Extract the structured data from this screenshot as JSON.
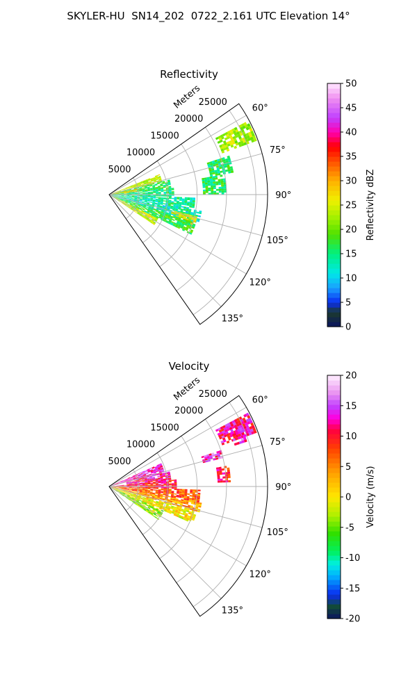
{
  "figure": {
    "title": "SKYLER-HU  SN14_202  0722_2.161 UTC Elevation 14°"
  },
  "chart_data": [
    {
      "type": "heatmap",
      "projection": "polar-sector",
      "title": "Reflectivity",
      "radial_label": "Meters",
      "r_ticks": [
        5000,
        10000,
        15000,
        20000,
        25000
      ],
      "r_range": [
        0,
        27000
      ],
      "theta_ticks": [
        "60°",
        "75°",
        "90°",
        "105°",
        "120°",
        "135°"
      ],
      "theta_tick_values": [
        60,
        75,
        90,
        105,
        120,
        135
      ],
      "theta_range": [
        55,
        145
      ],
      "grid": true,
      "colorbar": {
        "label": "Reflectivity dBZ",
        "min": 0,
        "max": 50,
        "ticks": [
          0,
          5,
          10,
          15,
          20,
          25,
          30,
          35,
          40,
          45,
          50
        ],
        "stops": [
          {
            "v": 0,
            "color": "#0a1560"
          },
          {
            "v": 3,
            "color": "#1c3a2c"
          },
          {
            "v": 5,
            "color": "#0a2cf0"
          },
          {
            "v": 8,
            "color": "#1aa0ff"
          },
          {
            "v": 11,
            "color": "#00e8e8"
          },
          {
            "v": 15,
            "color": "#00f080"
          },
          {
            "v": 19,
            "color": "#50e000"
          },
          {
            "v": 22,
            "color": "#98f000"
          },
          {
            "v": 26,
            "color": "#f0f000"
          },
          {
            "v": 30,
            "color": "#ffb000"
          },
          {
            "v": 34,
            "color": "#ff5000"
          },
          {
            "v": 37,
            "color": "#ff0000"
          },
          {
            "v": 40,
            "color": "#ff00b0"
          },
          {
            "v": 43,
            "color": "#c040ff"
          },
          {
            "v": 47,
            "color": "#f090f0"
          },
          {
            "v": 50,
            "color": "#ffe8ff"
          }
        ]
      },
      "echo_regions": [
        {
          "az": [
            68,
            76
          ],
          "r": [
            300,
            9000
          ],
          "value": 24
        },
        {
          "az": [
            76,
            84
          ],
          "r": [
            300,
            10500
          ],
          "value": 17
        },
        {
          "az": [
            78,
            86
          ],
          "r": [
            300,
            4500
          ],
          "value": 28
        },
        {
          "az": [
            84,
            92
          ],
          "r": [
            300,
            11000
          ],
          "value": 15
        },
        {
          "az": [
            92,
            100
          ],
          "r": [
            300,
            14500
          ],
          "value": 14
        },
        {
          "az": [
            100,
            108
          ],
          "r": [
            300,
            16000
          ],
          "value": 13
        },
        {
          "az": [
            104,
            110
          ],
          "r": [
            11000,
            15500
          ],
          "value": 25
        },
        {
          "az": [
            108,
            116
          ],
          "r": [
            300,
            15500
          ],
          "value": 17
        },
        {
          "az": [
            116,
            124
          ],
          "r": [
            300,
            9000
          ],
          "value": 24
        },
        {
          "az": [
            62,
            70
          ],
          "r": [
            20500,
            26500
          ],
          "value": 23
        },
        {
          "az": [
            72,
            80
          ],
          "r": [
            17500,
            21500
          ],
          "value": 16
        },
        {
          "az": [
            80,
            90
          ],
          "r": [
            16000,
            20000
          ],
          "value": 16
        }
      ]
    },
    {
      "type": "heatmap",
      "projection": "polar-sector",
      "title": "Velocity",
      "radial_label": "Meters",
      "r_ticks": [
        5000,
        10000,
        15000,
        20000,
        25000
      ],
      "r_range": [
        0,
        27000
      ],
      "theta_ticks": [
        "60°",
        "75°",
        "90°",
        "105°",
        "120°",
        "135°"
      ],
      "theta_tick_values": [
        60,
        75,
        90,
        105,
        120,
        135
      ],
      "theta_range": [
        55,
        145
      ],
      "grid": true,
      "colorbar": {
        "label": "Velocity (m/s)",
        "min": -20,
        "max": 20,
        "ticks": [
          -20,
          -15,
          -10,
          -5,
          0,
          5,
          10,
          15,
          20
        ],
        "stops": [
          {
            "v": -20,
            "color": "#0a1560"
          },
          {
            "v": -18,
            "color": "#124a3a"
          },
          {
            "v": -16,
            "color": "#0a2cf0"
          },
          {
            "v": -13,
            "color": "#00b0ff"
          },
          {
            "v": -11,
            "color": "#00f0e0"
          },
          {
            "v": -9,
            "color": "#00f060"
          },
          {
            "v": -6,
            "color": "#30e000"
          },
          {
            "v": -3,
            "color": "#b0f000"
          },
          {
            "v": 0,
            "color": "#ffe800"
          },
          {
            "v": 4,
            "color": "#ffa000"
          },
          {
            "v": 8,
            "color": "#ff4000"
          },
          {
            "v": 11,
            "color": "#ff0040"
          },
          {
            "v": 13,
            "color": "#ff00e0"
          },
          {
            "v": 15,
            "color": "#c040ff"
          },
          {
            "v": 17,
            "color": "#e890f0"
          },
          {
            "v": 20,
            "color": "#fff0ff"
          }
        ]
      },
      "echo_regions": [
        {
          "az": [
            66,
            76
          ],
          "r": [
            300,
            9500
          ],
          "value": 14
        },
        {
          "az": [
            76,
            86
          ],
          "r": [
            3000,
            10500
          ],
          "value": 12
        },
        {
          "az": [
            84,
            92
          ],
          "r": [
            300,
            11500
          ],
          "value": 10
        },
        {
          "az": [
            92,
            100
          ],
          "r": [
            300,
            15500
          ],
          "value": 7
        },
        {
          "az": [
            100,
            106
          ],
          "r": [
            300,
            16000
          ],
          "value": 4
        },
        {
          "az": [
            106,
            114
          ],
          "r": [
            300,
            15500
          ],
          "value": 0
        },
        {
          "az": [
            114,
            124
          ],
          "r": [
            300,
            10000
          ],
          "value": -3
        },
        {
          "az": [
            62,
            70
          ],
          "r": [
            20500,
            26500
          ],
          "value": 12
        },
        {
          "az": [
            66,
            72
          ],
          "r": [
            22500,
            24500
          ],
          "value": 14
        },
        {
          "az": [
            72,
            76
          ],
          "r": [
            16500,
            20000
          ],
          "value": 14
        },
        {
          "az": [
            80,
            88
          ],
          "r": [
            18500,
            20500
          ],
          "value": 10
        }
      ]
    }
  ]
}
